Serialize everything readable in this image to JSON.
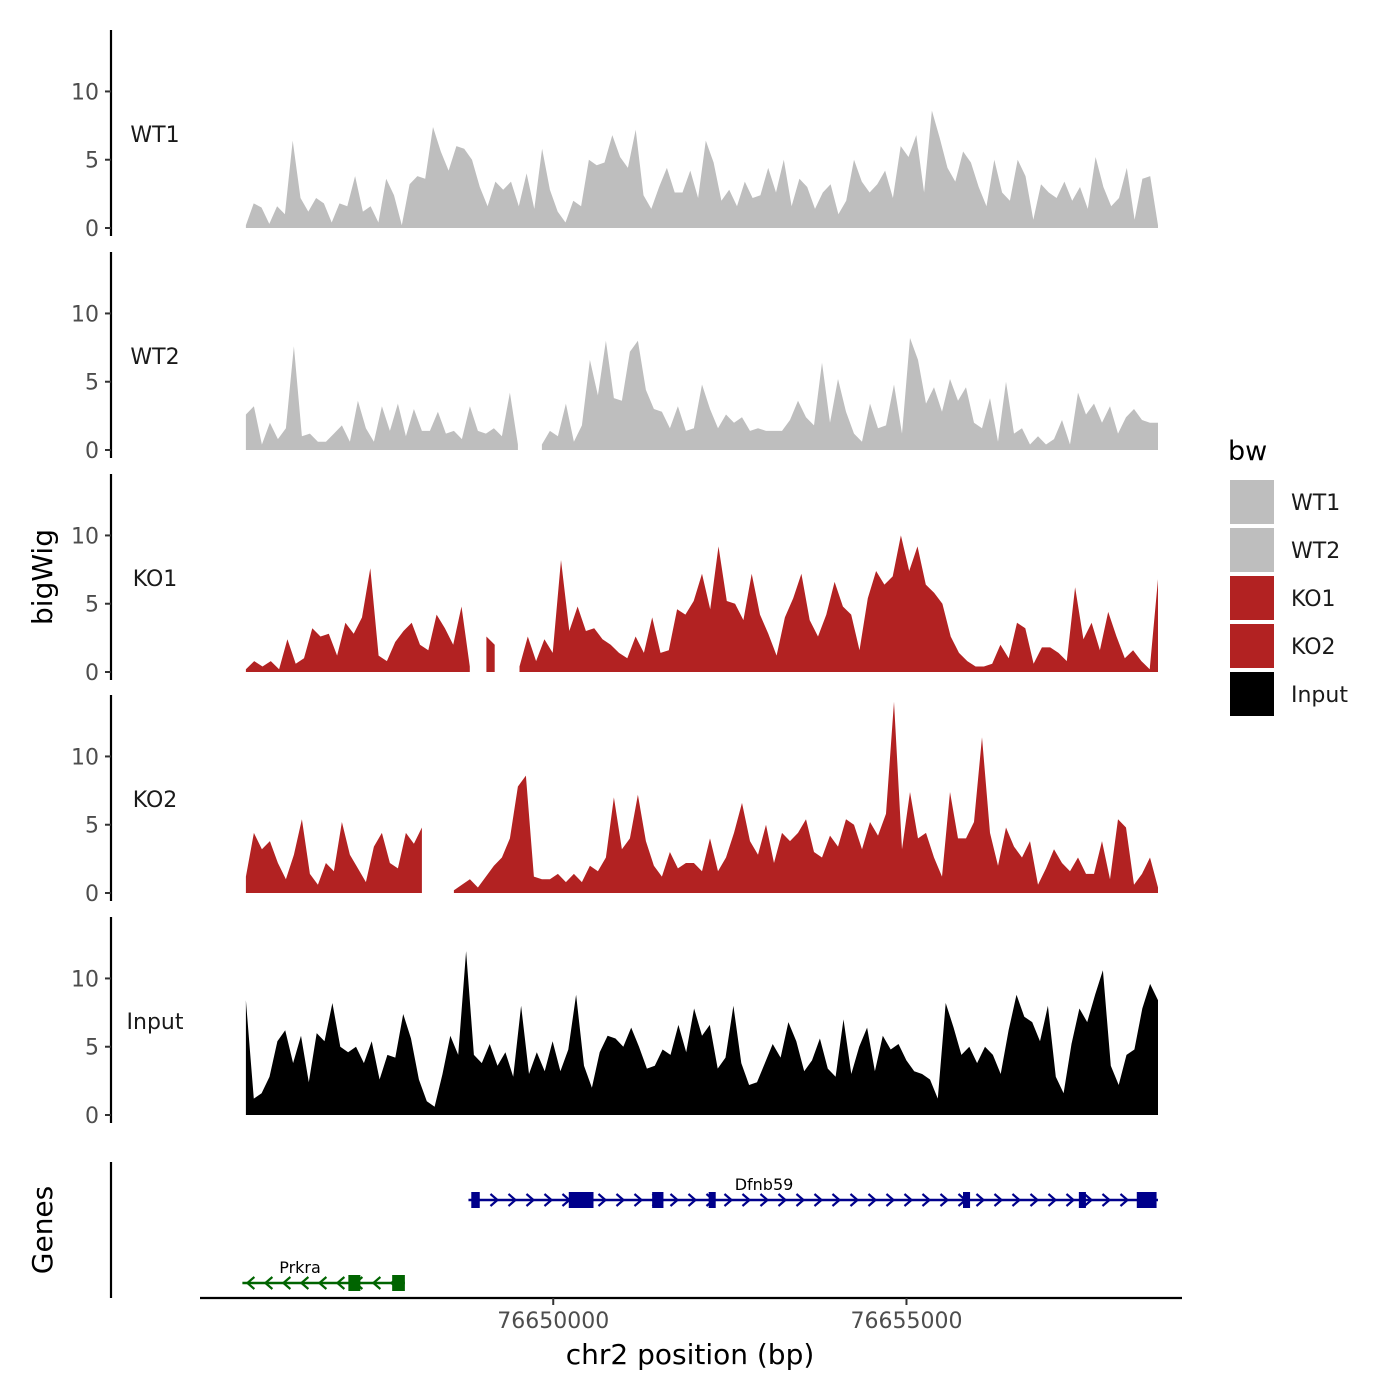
{
  "chart_data": {
    "type": "area",
    "ylabel": "bigWig",
    "xlabel": "chr2 position (bp)",
    "xlim": [
      76645000,
      76658900
    ],
    "data_range": [
      76645650,
      76658560
    ],
    "ylim": [
      0,
      14.5
    ],
    "y_ticks": [
      0,
      5,
      10
    ],
    "y_tick_labels": [
      "0",
      "5",
      "10"
    ],
    "x_ticks": [
      76650000,
      76655000
    ],
    "x_tick_labels": [
      "76650000",
      "76655000"
    ],
    "grid": false,
    "legend": {
      "title": "bw",
      "position": "right",
      "entries": [
        {
          "label": "WT1",
          "color": "#bebebe"
        },
        {
          "label": "WT2",
          "color": "#bebebe"
        },
        {
          "label": "KO1",
          "color": "#b22222"
        },
        {
          "label": "KO2",
          "color": "#b22222"
        },
        {
          "label": "Input",
          "color": "#000000"
        }
      ]
    },
    "series": [
      {
        "name": "WT1",
        "color": "#bebebe",
        "values": [
          0.2,
          1.8,
          1.5,
          0.3,
          1.6,
          1.0,
          6.4,
          2.2,
          1.2,
          2.2,
          1.8,
          0.4,
          1.8,
          1.6,
          3.8,
          1.2,
          1.6,
          0.4,
          3.6,
          2.4,
          0.2,
          3.2,
          3.8,
          3.6,
          7.4,
          5.6,
          4.2,
          6.0,
          5.8,
          5.0,
          3.0,
          1.6,
          3.4,
          2.8,
          3.4,
          1.6,
          4.0,
          1.4,
          5.8,
          2.8,
          1.2,
          0.4,
          2.0,
          1.6,
          5.0,
          4.6,
          4.8,
          6.8,
          5.2,
          4.4,
          7.2,
          2.4,
          1.4,
          3.0,
          4.4,
          2.6,
          2.6,
          4.2,
          2.2,
          6.4,
          4.8,
          2.0,
          2.8,
          1.6,
          3.4,
          2.2,
          2.4,
          4.4,
          2.6,
          5.0,
          1.6,
          3.6,
          3.0,
          1.4,
          2.6,
          3.2,
          1.0,
          2.0,
          5.0,
          3.4,
          2.6,
          3.2,
          4.2,
          2.2,
          6.0,
          5.2,
          6.8,
          2.6,
          8.6,
          6.6,
          4.4,
          3.4,
          5.6,
          4.8,
          3.0,
          1.6,
          5.0,
          2.6,
          2.0,
          5.0,
          3.8,
          0.6,
          3.2,
          2.6,
          2.2,
          3.4,
          2.0,
          3.0,
          1.4,
          5.2,
          3.0,
          1.6,
          2.2,
          4.4,
          0.6,
          3.6,
          3.8,
          0.2
        ]
      },
      {
        "name": "WT2",
        "color": "#bebebe",
        "values": [
          2.6,
          3.2,
          0.4,
          2.0,
          0.8,
          1.6,
          7.6,
          1.0,
          1.2,
          0.6,
          0.6,
          1.2,
          1.8,
          0.6,
          3.6,
          1.6,
          0.6,
          3.2,
          1.4,
          3.4,
          1.0,
          3.0,
          1.4,
          1.4,
          2.8,
          1.2,
          1.4,
          0.8,
          3.2,
          1.4,
          1.2,
          1.6,
          1.0,
          4.2,
          0.4,
          null,
          null,
          0.4,
          1.4,
          1.0,
          3.4,
          0.6,
          1.8,
          6.6,
          4.0,
          8.0,
          3.8,
          3.6,
          7.2,
          8.0,
          4.4,
          3.0,
          2.8,
          1.6,
          3.2,
          1.4,
          1.6,
          4.8,
          3.0,
          1.6,
          2.6,
          2.0,
          2.4,
          1.4,
          1.6,
          1.4,
          1.4,
          1.4,
          2.2,
          3.6,
          2.4,
          1.8,
          6.4,
          2.0,
          5.2,
          2.8,
          1.2,
          0.6,
          3.4,
          1.6,
          1.8,
          4.8,
          1.2,
          8.2,
          6.6,
          3.4,
          4.6,
          2.8,
          5.2,
          3.6,
          4.6,
          2.0,
          1.6,
          3.8,
          0.6,
          5.0,
          1.2,
          1.6,
          0.4,
          1.0,
          0.4,
          0.8,
          2.2,
          0.4,
          4.2,
          2.6,
          3.4,
          2.0,
          3.2,
          1.2,
          2.4,
          3.0,
          2.2,
          2.0,
          2.0
        ]
      },
      {
        "name": "KO1",
        "color": "#b22222",
        "values": [
          0.2,
          0.8,
          0.4,
          0.8,
          0.2,
          2.4,
          0.6,
          1.0,
          3.2,
          2.6,
          2.8,
          1.2,
          3.6,
          2.8,
          4.0,
          7.6,
          1.2,
          0.8,
          2.2,
          3.0,
          3.6,
          2.0,
          1.6,
          4.2,
          3.2,
          2.0,
          4.8,
          0.4,
          null,
          2.6,
          2.0,
          null,
          null,
          0.4,
          2.6,
          0.8,
          2.4,
          1.4,
          8.2,
          3.0,
          4.8,
          3.0,
          3.2,
          2.4,
          2.0,
          1.4,
          1.0,
          2.6,
          1.4,
          4.0,
          1.4,
          1.6,
          4.6,
          4.2,
          5.2,
          7.2,
          4.6,
          9.2,
          5.2,
          5.0,
          3.8,
          7.2,
          4.2,
          2.8,
          1.2,
          4.0,
          5.4,
          7.2,
          3.8,
          2.6,
          4.2,
          6.6,
          4.8,
          4.2,
          1.6,
          5.4,
          7.4,
          6.4,
          7.0,
          10.0,
          7.4,
          9.2,
          6.4,
          5.8,
          5.0,
          2.6,
          1.4,
          0.8,
          0.4,
          0.4,
          0.6,
          2.0,
          1.0,
          3.6,
          3.2,
          0.6,
          1.8,
          1.8,
          1.4,
          0.8,
          6.2,
          2.4,
          3.6,
          1.6,
          4.4,
          2.6,
          1.0,
          1.6,
          0.8,
          0.2,
          6.8
        ]
      },
      {
        "name": "KO2",
        "color": "#b22222",
        "values": [
          1.2,
          4.4,
          3.2,
          3.8,
          2.2,
          1.0,
          2.8,
          5.4,
          1.4,
          0.6,
          2.2,
          1.6,
          5.2,
          2.8,
          1.8,
          0.8,
          3.4,
          4.4,
          2.2,
          1.8,
          4.4,
          3.6,
          4.8,
          null,
          null,
          null,
          0.2,
          0.6,
          1.0,
          0.4,
          1.2,
          2.0,
          2.6,
          4.0,
          7.8,
          8.6,
          1.2,
          1.0,
          1.0,
          1.4,
          0.8,
          1.4,
          0.8,
          2.0,
          1.6,
          2.6,
          7.0,
          3.2,
          4.0,
          7.2,
          3.8,
          2.0,
          1.2,
          3.0,
          1.8,
          2.2,
          2.2,
          1.6,
          4.0,
          1.6,
          2.6,
          4.4,
          6.6,
          3.8,
          2.8,
          5.0,
          2.2,
          4.4,
          3.8,
          4.4,
          5.4,
          3.0,
          2.6,
          4.2,
          3.4,
          5.4,
          5.0,
          3.2,
          5.2,
          4.2,
          5.8,
          14.0,
          3.2,
          7.4,
          4.0,
          4.4,
          2.6,
          1.2,
          7.4,
          4.0,
          4.0,
          5.2,
          11.4,
          4.4,
          2.0,
          4.8,
          3.4,
          2.6,
          3.8,
          0.6,
          1.8,
          3.2,
          2.2,
          1.6,
          2.6,
          1.4,
          1.4,
          3.8,
          1.0,
          5.4,
          4.8,
          0.6,
          1.4,
          2.6,
          0.4
        ]
      },
      {
        "name": "Input",
        "color": "#000000",
        "values": [
          8.4,
          1.2,
          1.6,
          2.8,
          5.4,
          6.2,
          3.8,
          5.8,
          2.4,
          6.0,
          5.4,
          8.2,
          5.0,
          4.6,
          5.0,
          3.8,
          5.4,
          2.6,
          4.4,
          4.2,
          7.4,
          5.6,
          2.6,
          1.0,
          0.6,
          3.0,
          5.8,
          4.4,
          12.0,
          4.4,
          3.8,
          5.2,
          3.6,
          4.6,
          2.8,
          8.0,
          3.0,
          4.6,
          3.2,
          5.4,
          3.2,
          4.8,
          8.8,
          3.6,
          2.0,
          4.6,
          5.8,
          5.6,
          5.0,
          6.4,
          5.0,
          3.4,
          3.6,
          4.8,
          4.4,
          6.6,
          4.6,
          7.8,
          5.8,
          6.6,
          3.4,
          4.2,
          8.0,
          3.8,
          2.2,
          2.4,
          3.8,
          5.2,
          4.2,
          6.8,
          5.4,
          3.2,
          4.0,
          5.6,
          3.4,
          2.8,
          7.0,
          3.0,
          5.0,
          6.4,
          3.2,
          5.8,
          4.8,
          5.2,
          4.0,
          3.2,
          3.0,
          2.6,
          1.2,
          8.2,
          6.4,
          4.4,
          5.0,
          3.8,
          5.0,
          4.4,
          3.0,
          6.2,
          8.8,
          7.2,
          6.8,
          5.4,
          8.0,
          2.8,
          1.6,
          5.2,
          7.8,
          6.8,
          8.8,
          10.6,
          3.6,
          2.2,
          4.4,
          4.8,
          7.8,
          9.6,
          8.4
        ]
      }
    ],
    "genes": [
      {
        "name": "Dfnb59",
        "strand": "+",
        "color": "#00008b",
        "start": 76648800,
        "end": 76658560,
        "exons": [
          [
            76648840,
            76648960
          ],
          [
            76650220,
            76650570
          ],
          [
            76651400,
            76651560
          ],
          [
            76652200,
            76652300
          ],
          [
            76655800,
            76655900
          ],
          [
            76657440,
            76657540
          ],
          [
            76658260,
            76658540
          ]
        ]
      },
      {
        "name": "Prkra",
        "strand": "-",
        "color": "#006400",
        "start": 76645600,
        "end": 76647900,
        "exons": [
          [
            76647100,
            76647270
          ],
          [
            76647720,
            76647900
          ]
        ]
      }
    ],
    "gene_track_label": "Genes"
  }
}
